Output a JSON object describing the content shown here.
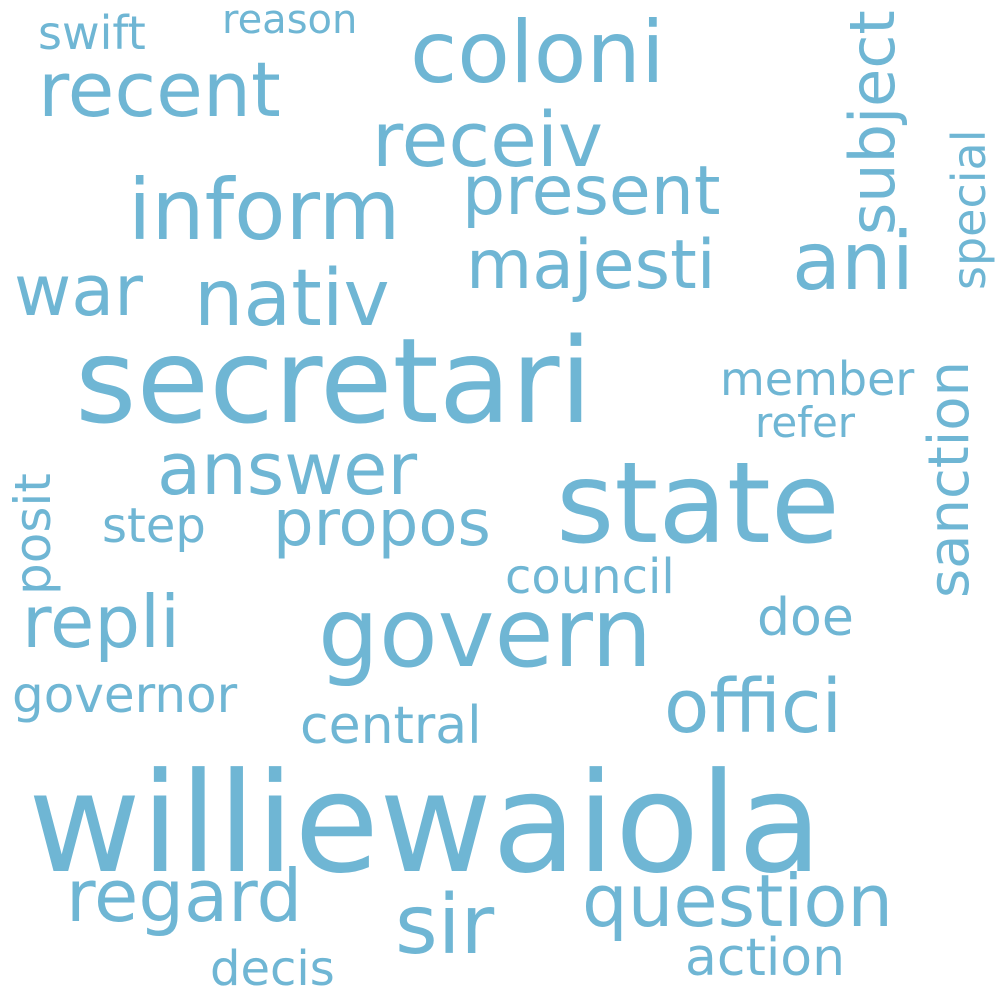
{
  "colors": {
    "word": "#6fb6d4",
    "background": "#ffffff"
  },
  "words": [
    {
      "name": "williewaiola",
      "text": "williewaiola"
    },
    {
      "name": "secretari",
      "text": "secretari"
    },
    {
      "name": "state",
      "text": "state"
    },
    {
      "name": "govern",
      "text": "govern"
    },
    {
      "name": "coloni",
      "text": "coloni"
    },
    {
      "name": "inform",
      "text": "inform"
    },
    {
      "name": "recent",
      "text": "recent"
    },
    {
      "name": "receiv",
      "text": "receiv"
    },
    {
      "name": "nativ",
      "text": "nativ"
    },
    {
      "name": "ani",
      "text": "ani"
    },
    {
      "name": "majesti",
      "text": "majesti"
    },
    {
      "name": "present",
      "text": "present"
    },
    {
      "name": "war",
      "text": "war"
    },
    {
      "name": "answer",
      "text": "answer"
    },
    {
      "name": "propos",
      "text": "propos"
    },
    {
      "name": "repli",
      "text": "repli"
    },
    {
      "name": "offici",
      "text": "offici"
    },
    {
      "name": "regard",
      "text": "regard"
    },
    {
      "name": "sir",
      "text": "sir"
    },
    {
      "name": "question",
      "text": "question"
    },
    {
      "name": "posit",
      "text": "posit"
    },
    {
      "name": "subject",
      "text": "subject"
    },
    {
      "name": "sanction",
      "text": "sanction"
    },
    {
      "name": "special",
      "text": "special"
    },
    {
      "name": "member",
      "text": "member"
    },
    {
      "name": "refer",
      "text": "refer"
    },
    {
      "name": "step",
      "text": "step"
    },
    {
      "name": "council",
      "text": "council"
    },
    {
      "name": "doe",
      "text": "doe"
    },
    {
      "name": "governor",
      "text": "governor"
    },
    {
      "name": "central",
      "text": "central"
    },
    {
      "name": "action",
      "text": "action"
    },
    {
      "name": "decis",
      "text": "decis"
    },
    {
      "name": "swift",
      "text": "swift"
    },
    {
      "name": "reason",
      "text": "reason"
    }
  ]
}
